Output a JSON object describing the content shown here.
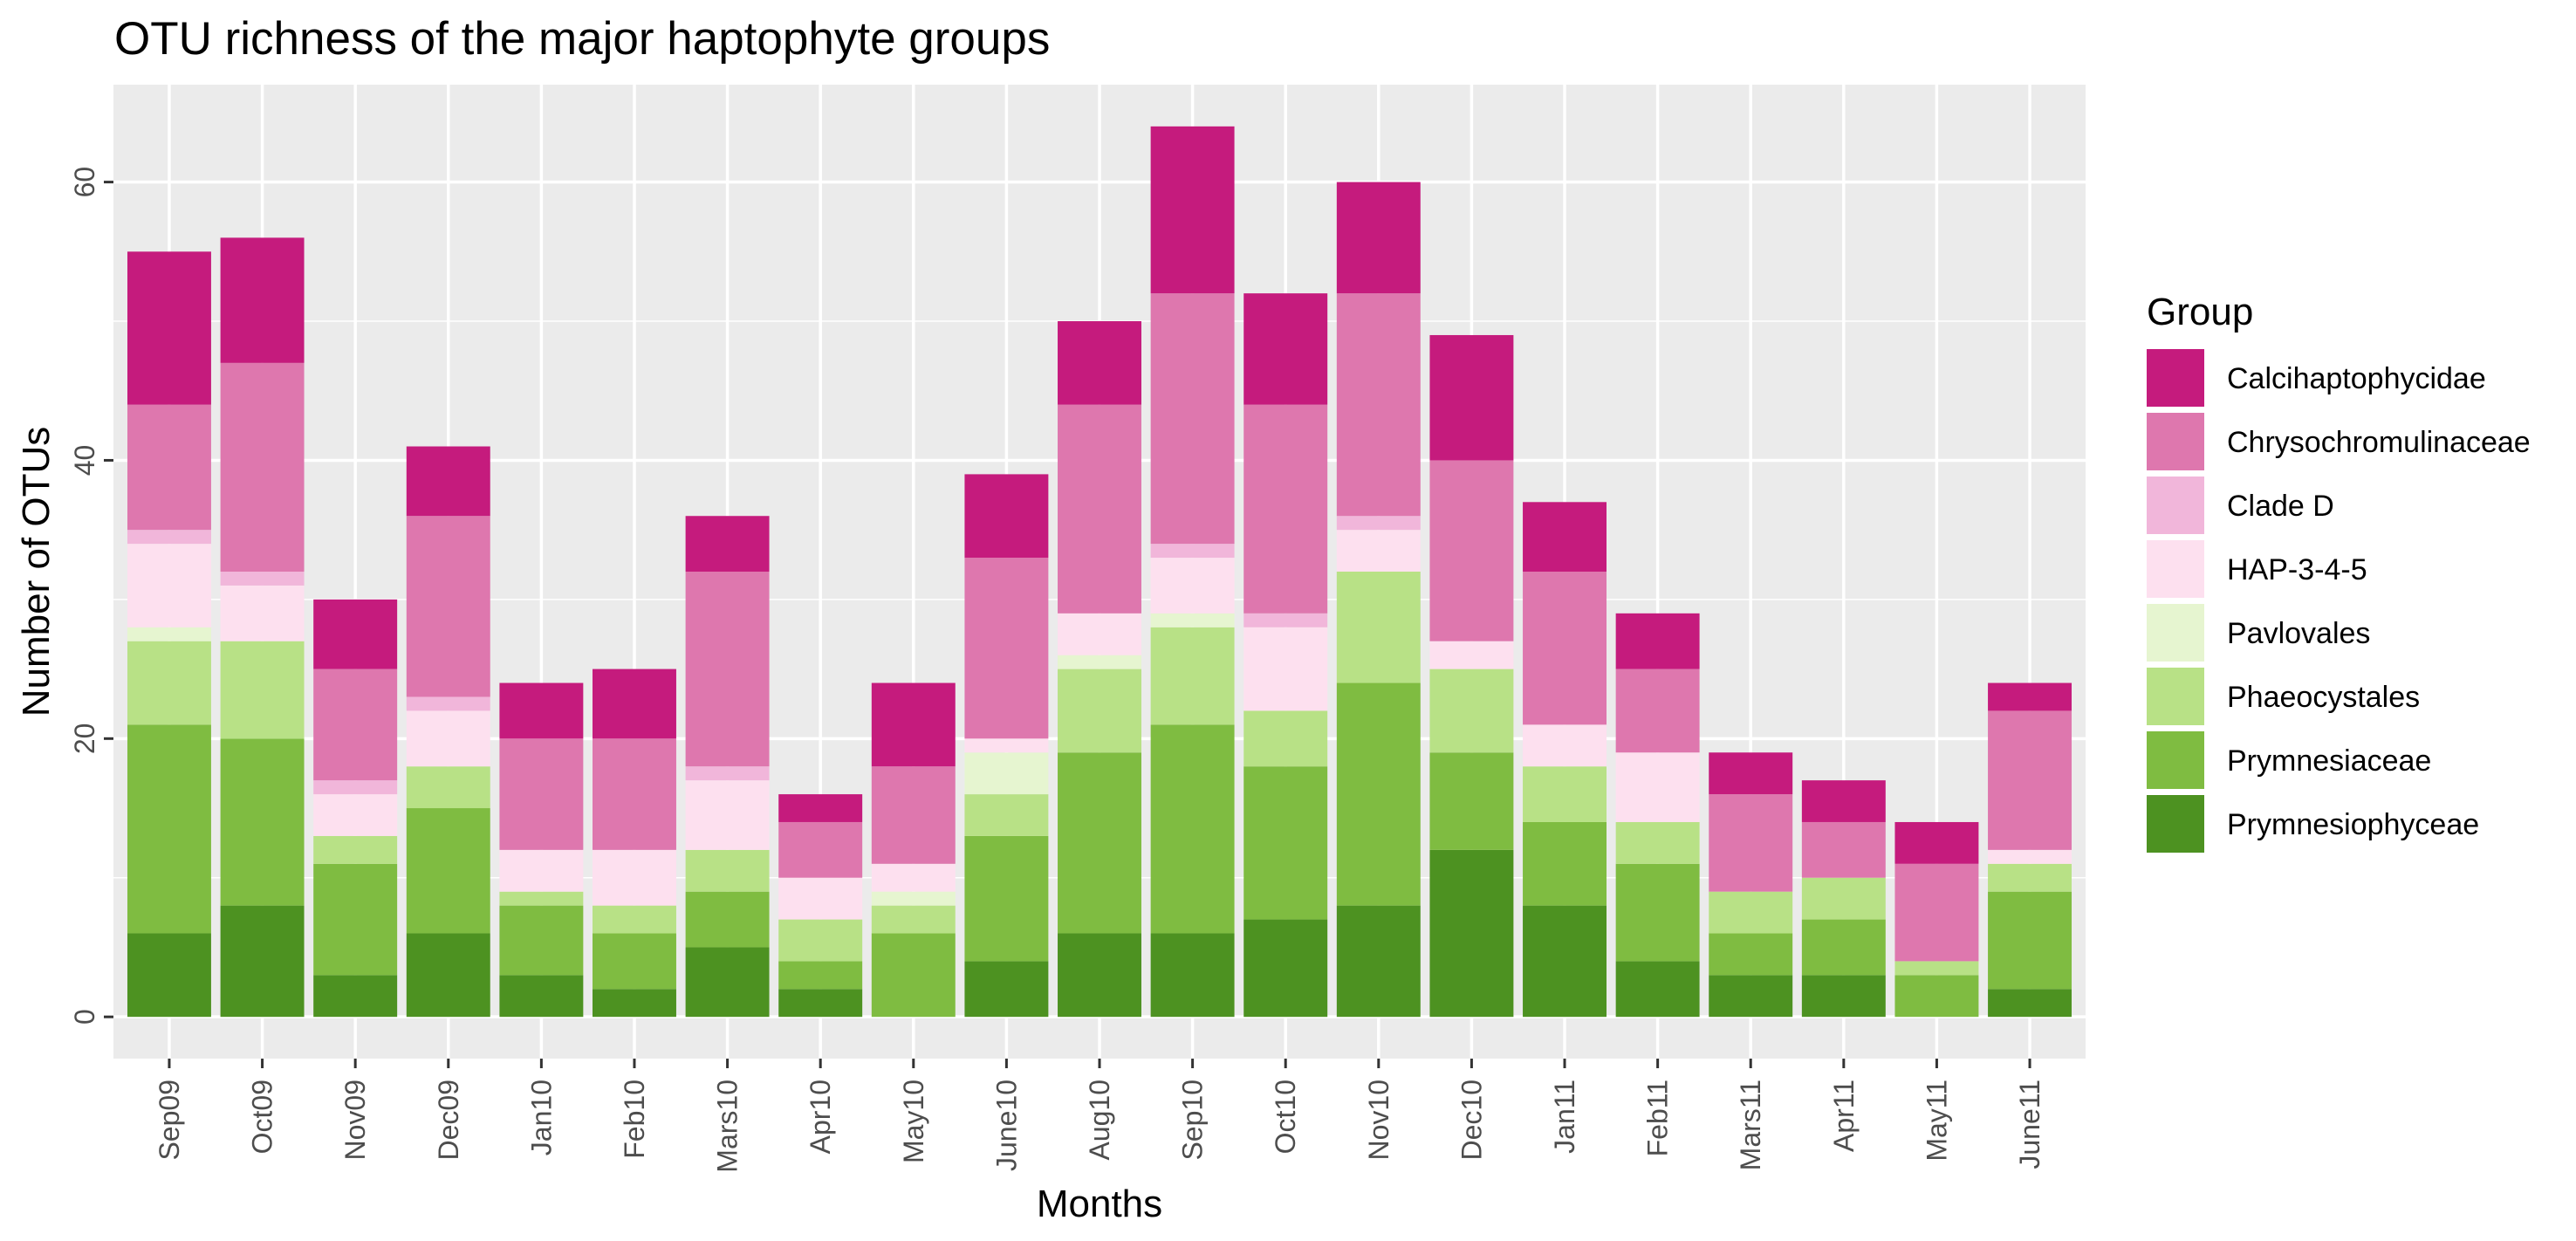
{
  "chart_data": {
    "type": "bar",
    "stacked": true,
    "title": "OTU richness of the major haptophyte groups",
    "xlabel": "Months",
    "ylabel": "Number of OTUs",
    "ylim": [
      -3,
      67
    ],
    "yticks": [
      0,
      20,
      40,
      60
    ],
    "grid": true,
    "legend_title": "Group",
    "legend_position": "right",
    "categories": [
      "Sep09",
      "Oct09",
      "Nov09",
      "Dec09",
      "Jan10",
      "Feb10",
      "Mars10",
      "Apr10",
      "May10",
      "June10",
      "Aug10",
      "Sep10",
      "Oct10",
      "Nov10",
      "Dec10",
      "Jan11",
      "Feb11",
      "Mars11",
      "Apr11",
      "May11",
      "June11"
    ],
    "series": [
      {
        "name": "Calcihaptophycidae",
        "color": "#c51b7d",
        "values": [
          11,
          9,
          5,
          5,
          4,
          5,
          4,
          2,
          6,
          6,
          6,
          12,
          8,
          8,
          9,
          5,
          4,
          3,
          3,
          3,
          2
        ]
      },
      {
        "name": "Chrysochromulinaceae",
        "color": "#de77ae",
        "values": [
          9,
          15,
          8,
          13,
          8,
          8,
          14,
          4,
          7,
          13,
          15,
          18,
          15,
          16,
          13,
          11,
          6,
          7,
          4,
          7,
          10
        ]
      },
      {
        "name": "Clade D",
        "color": "#f1b6da",
        "values": [
          1,
          1,
          1,
          1,
          0,
          0,
          1,
          0,
          0,
          0,
          0,
          1,
          1,
          1,
          0,
          0,
          0,
          0,
          0,
          0,
          0
        ]
      },
      {
        "name": "HAP-3-4-5",
        "color": "#fde0ef",
        "values": [
          6,
          4,
          3,
          4,
          3,
          4,
          5,
          3,
          2,
          1,
          3,
          4,
          6,
          3,
          2,
          3,
          5,
          0,
          0,
          0,
          1
        ]
      },
      {
        "name": "Pavlovales",
        "color": "#e6f5d0",
        "values": [
          1,
          0,
          0,
          0,
          0,
          0,
          0,
          0,
          1,
          3,
          1,
          1,
          0,
          0,
          0,
          0,
          0,
          0,
          0,
          0,
          0
        ]
      },
      {
        "name": "Phaeocystales",
        "color": "#b8e186",
        "values": [
          6,
          7,
          2,
          3,
          1,
          2,
          3,
          3,
          2,
          3,
          6,
          7,
          4,
          8,
          6,
          4,
          3,
          3,
          3,
          1,
          2
        ]
      },
      {
        "name": "Prymnesiaceae",
        "color": "#7fbc41",
        "values": [
          15,
          12,
          8,
          9,
          5,
          4,
          4,
          2,
          6,
          9,
          13,
          15,
          11,
          16,
          7,
          6,
          7,
          3,
          4,
          3,
          7
        ]
      },
      {
        "name": "Prymnesiophyceae",
        "color": "#4d9221",
        "values": [
          6,
          8,
          3,
          6,
          3,
          2,
          5,
          2,
          0,
          4,
          6,
          6,
          7,
          8,
          12,
          8,
          4,
          3,
          3,
          0,
          2
        ]
      }
    ]
  }
}
